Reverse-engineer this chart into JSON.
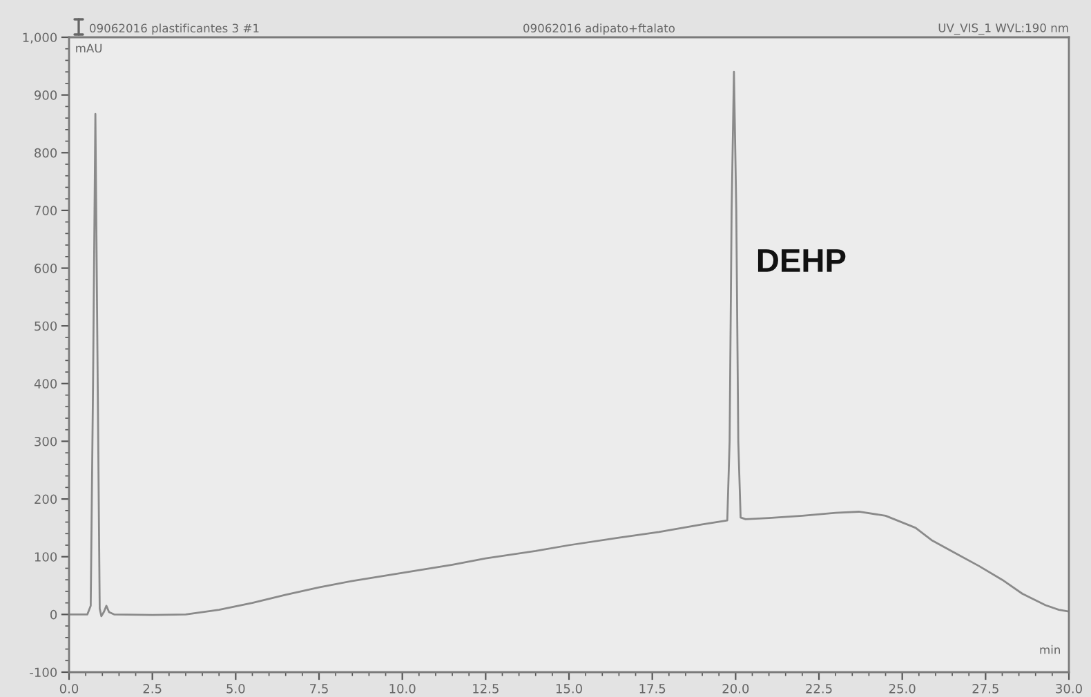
{
  "chart_data": {
    "type": "line",
    "title": "09062016 adipato+ftalato",
    "xlabel": "min",
    "ylabel": "mAU",
    "annotations": [
      "09062016 plastificantes 3 #1",
      "UV_VIS_1 WVL:190 nm",
      "DEHP"
    ],
    "x": [
      0.0,
      0.55,
      0.65,
      0.72,
      0.79,
      0.86,
      0.92,
      0.97,
      1.05,
      1.12,
      1.2,
      1.35,
      2.5,
      3.5,
      4.5,
      5.5,
      6.5,
      7.5,
      8.5,
      10.0,
      11.5,
      12.5,
      14.0,
      15.0,
      16.5,
      17.7,
      19.0,
      19.75,
      19.82,
      19.88,
      19.95,
      20.02,
      20.08,
      20.15,
      20.3,
      21.0,
      22.0,
      23.0,
      23.7,
      24.5,
      25.4,
      25.9,
      26.6,
      27.3,
      28.0,
      28.6,
      29.3,
      29.7,
      30.0
    ],
    "series": [
      {
        "color": "#8a8a8a",
        "values": [
          0,
          0,
          15,
          400,
          867,
          400,
          10,
          -3,
          5,
          15,
          4,
          0,
          -1,
          0,
          8,
          20,
          34,
          47,
          58,
          72,
          86,
          97,
          110,
          120,
          133,
          143,
          156,
          163,
          300,
          700,
          940,
          700,
          300,
          168,
          165,
          167,
          171,
          176,
          178,
          171,
          150,
          128,
          106,
          84,
          60,
          36,
          16,
          8,
          5
        ]
      }
    ],
    "xlim": [
      0,
      30
    ],
    "ylim": [
      -100,
      1000
    ],
    "xticks": [
      {
        "value": 0,
        "label": "0.0"
      },
      2.5,
      {
        "value": 5,
        "label": "5.0"
      },
      7.5,
      {
        "value": 10,
        "label": "10.0"
      },
      12.5,
      {
        "value": 15,
        "label": "15.0"
      },
      17.5,
      {
        "value": 20,
        "label": "20.0"
      },
      22.5,
      {
        "value": 25,
        "label": "25.0"
      },
      27.5,
      {
        "value": 30,
        "label": "30.0"
      }
    ],
    "yticks": [
      -100,
      0,
      100,
      200,
      300,
      400,
      500,
      600,
      700,
      800,
      900,
      {
        "value": 1000,
        "label": "1,000"
      }
    ],
    "grid": false,
    "marker": "none",
    "line_style": "solid"
  }
}
